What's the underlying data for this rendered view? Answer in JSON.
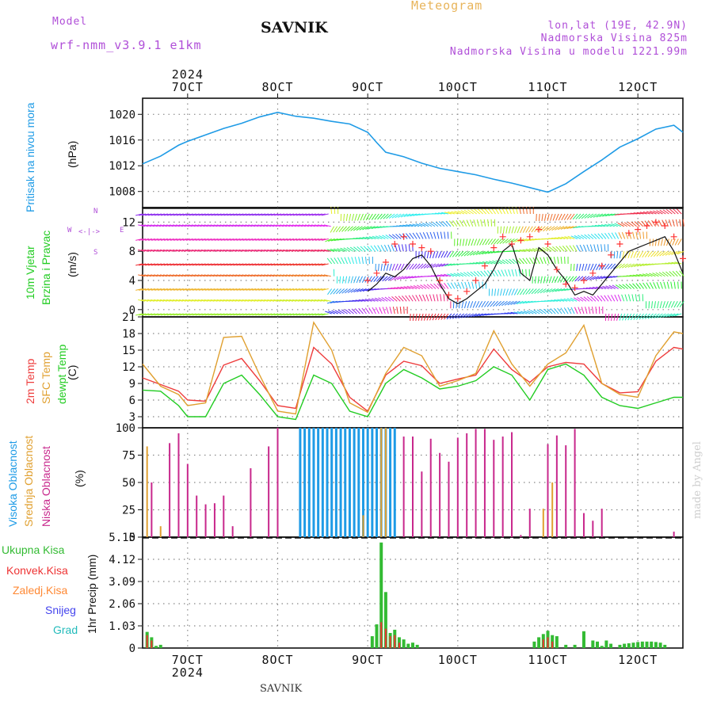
{
  "header": {
    "model_label": "Model",
    "model_name": "wrf-nmm_v3.9.1 e1km",
    "station": "SAVNIK",
    "product": "Meteogram",
    "coords": "lon,lat (19E, 42.9N)",
    "elevation": "Nadmorska Visina 825m",
    "model_elevation": "Nadmorska Visina u modelu 1221.99m"
  },
  "footer": {
    "station": "SAVNIK",
    "watermark": "made by Angel"
  },
  "colors": {
    "pressure": "#1f9be6",
    "wind_speed": "#111111",
    "wind_gust": "#ff3333",
    "temp2m": "#ee3b3b",
    "sfc": "#e0a030",
    "dewpt": "#22cc22",
    "high_cloud": "#1e9be6",
    "mid_cloud": "#e0a030",
    "low_cloud": "#c8288c",
    "total_rain": "#33bb33",
    "conv_rain": "#ee3333",
    "freezing": "#ff8833",
    "snow": "#4444ee",
    "graupel": "#22bbbb",
    "grid": "#888888"
  },
  "chart_data": [
    {
      "type": "line",
      "panel": "pressure",
      "ylabel_title": "Pritisak na nivou mora",
      "ylabel_unit": "(hPa)",
      "yticks": [
        "1008",
        "1012",
        "1016",
        "1020"
      ],
      "ylim": [
        1005.5,
        1022.5
      ],
      "x_days": [
        6.5,
        6.7,
        6.9,
        7.0,
        7.2,
        7.4,
        7.6,
        7.8,
        8.0,
        8.2,
        8.4,
        8.6,
        8.8,
        9.0,
        9.1,
        9.2,
        9.4,
        9.6,
        9.8,
        10.0,
        10.2,
        10.4,
        10.6,
        10.8,
        11.0,
        11.2,
        11.4,
        11.6,
        11.8,
        12.0,
        12.2,
        12.4,
        12.5
      ],
      "values": [
        1012.3,
        1013.5,
        1015.2,
        1015.8,
        1016.8,
        1017.8,
        1018.6,
        1019.6,
        1020.3,
        1019.7,
        1019.4,
        1018.9,
        1018.5,
        1017.2,
        1015.6,
        1014.1,
        1013.4,
        1012.4,
        1011.6,
        1011.1,
        1010.6,
        1009.9,
        1009.3,
        1008.6,
        1007.9,
        1009.2,
        1011.1,
        1012.9,
        1014.9,
        1016.2,
        1017.7,
        1018.3,
        1017.2
      ]
    },
    {
      "type": "line",
      "panel": "wind",
      "ylabel_title": "10m Vjetar",
      "ylabel_sub": "Brzina i Pravac",
      "ylabel_unit": "(m/s)",
      "compass_labels": [
        "N",
        "W",
        "E",
        "S"
      ],
      "yticks": [
        "0",
        "4",
        "8",
        "12"
      ],
      "ylim": [
        -1,
        14
      ],
      "x_days": [
        9.0,
        9.1,
        9.2,
        9.3,
        9.4,
        9.5,
        9.6,
        9.7,
        9.8,
        9.9,
        10.0,
        10.1,
        10.2,
        10.3,
        10.4,
        10.5,
        10.6,
        10.7,
        10.8,
        10.9,
        11.0,
        11.1,
        11.2,
        11.3,
        11.4,
        11.5,
        11.6,
        11.7,
        11.8,
        11.9,
        12.0,
        12.1,
        12.2,
        12.3,
        12.4,
        12.5
      ],
      "series": [
        {
          "values": [
            2.5,
            3.5,
            5.0,
            4.5,
            5.5,
            7.0,
            7.5,
            6.0,
            3.5,
            1.5,
            0.8,
            1.5,
            2.5,
            3.5,
            5.5,
            8.0,
            9.0,
            5.0,
            4.0,
            8.5,
            7.5,
            5.5,
            4.0,
            2.0,
            2.5,
            2.0,
            3.5,
            5.0,
            6.5,
            8.0,
            8.5,
            9.0,
            9.5,
            10.0,
            8.0,
            5.0
          ]
        },
        {
          "values": [
            4.0,
            5.0,
            6.5,
            9.0,
            10.0,
            9.0,
            8.5,
            8.0,
            4.0,
            2.0,
            1.5,
            2.5,
            4.0,
            6.0,
            8.5,
            10.0,
            9.0,
            9.5,
            10.0,
            11.0,
            9.0,
            5.5,
            3.5,
            3.0,
            4.0,
            5.0,
            6.0,
            7.5,
            9.0,
            10.5,
            11.0,
            11.5,
            12.0,
            11.5,
            10.0,
            7.0
          ]
        }
      ]
    },
    {
      "type": "line",
      "panel": "temperature",
      "ylabel_lines": [
        "2m Temp",
        "SFC Temp",
        "dewpt Temp"
      ],
      "ylabel_unit": "(C)",
      "yticks": [
        "3",
        "6",
        "9",
        "12",
        "15",
        "18",
        "21"
      ],
      "ylim": [
        1,
        21
      ],
      "x_days": [
        6.5,
        6.7,
        6.9,
        7.0,
        7.2,
        7.4,
        7.6,
        7.8,
        8.0,
        8.2,
        8.4,
        8.6,
        8.8,
        9.0,
        9.2,
        9.4,
        9.6,
        9.8,
        10.0,
        10.2,
        10.4,
        10.6,
        10.8,
        11.0,
        11.2,
        11.4,
        11.6,
        11.8,
        12.0,
        12.2,
        12.4,
        12.5
      ],
      "series": [
        {
          "name": "2m Temp",
          "values": [
            10.0,
            8.8,
            7.6,
            6.0,
            5.8,
            12.3,
            13.5,
            9.5,
            5.0,
            4.5,
            15.5,
            12.5,
            6.5,
            4.0,
            10.5,
            13.0,
            12.2,
            9.0,
            9.8,
            10.5,
            15.2,
            11.5,
            9.2,
            12.0,
            12.8,
            12.5,
            9.0,
            7.3,
            7.5,
            13.0,
            15.5,
            15.2
          ]
        },
        {
          "name": "SFC Temp",
          "values": [
            12.5,
            8.5,
            7.0,
            5.0,
            5.5,
            17.3,
            17.5,
            10.5,
            4.0,
            3.5,
            20.0,
            15.0,
            5.5,
            3.8,
            10.8,
            15.5,
            14.0,
            8.5,
            9.5,
            10.8,
            18.5,
            12.5,
            8.5,
            12.5,
            14.5,
            19.5,
            9.0,
            7.0,
            6.5,
            14.0,
            18.3,
            18.0
          ]
        },
        {
          "name": "dewpt Temp",
          "values": [
            7.8,
            7.6,
            5.0,
            3.0,
            3.0,
            9.0,
            10.5,
            7.0,
            3.0,
            2.5,
            10.5,
            9.0,
            4.0,
            3.0,
            9.0,
            11.5,
            10.0,
            8.0,
            8.5,
            9.5,
            12.0,
            10.5,
            6.0,
            11.5,
            12.5,
            10.5,
            6.5,
            5.0,
            4.5,
            5.5,
            6.5,
            6.5
          ]
        }
      ]
    },
    {
      "type": "bar",
      "panel": "clouds",
      "ylabel_lines": [
        "Visoka Oblacnost",
        "Srednja Oblacnost",
        "Niska Oblacnost"
      ],
      "ylabel_unit": "(%)",
      "yticks": [
        "0",
        "25",
        "50",
        "75",
        "100"
      ],
      "ylim": [
        0,
        100
      ],
      "series": [
        {
          "name": "Visoka Oblacnost",
          "x": [
            8.25,
            8.3,
            8.35,
            8.4,
            8.45,
            8.5,
            8.55,
            8.6,
            8.65,
            8.7,
            8.75,
            8.8,
            8.85,
            8.9,
            8.95,
            9.0,
            9.05,
            9.1,
            9.15,
            9.2,
            9.25,
            9.3
          ],
          "values": [
            100,
            100,
            100,
            100,
            100,
            100,
            100,
            100,
            100,
            100,
            100,
            100,
            100,
            100,
            100,
            100,
            100,
            100,
            100,
            100,
            100,
            100
          ]
        },
        {
          "name": "Srednja Oblacnost",
          "x": [
            6.55,
            6.7,
            8.95,
            9.15,
            9.2,
            10.95,
            11.0,
            11.05
          ],
          "values": [
            83,
            10,
            20,
            100,
            100,
            26,
            55,
            50
          ]
        },
        {
          "name": "Niska Oblacnost",
          "x": [
            6.6,
            6.8,
            6.9,
            7.0,
            7.1,
            7.2,
            7.3,
            7.4,
            7.5,
            7.7,
            7.9,
            8.0,
            9.4,
            9.5,
            9.6,
            9.7,
            9.8,
            9.9,
            10.0,
            10.1,
            10.2,
            10.3,
            10.4,
            10.5,
            10.6,
            10.7,
            10.8,
            11.0,
            11.1,
            11.2,
            11.3,
            11.4,
            11.5,
            11.6,
            12.4
          ],
          "values": [
            50,
            86,
            95,
            67,
            38,
            30,
            31,
            38,
            10,
            63,
            83,
            100,
            92,
            92,
            60,
            90,
            77,
            69,
            91,
            95,
            99,
            99,
            89,
            92,
            96,
            2,
            26,
            85,
            93,
            84,
            99,
            22,
            15,
            26,
            5
          ]
        }
      ]
    },
    {
      "type": "bar",
      "panel": "precipitation",
      "legend": [
        "Ukupna Kisa",
        "Konvek.Kisa",
        "Zaledj.Kisa",
        "Snijeg",
        "Grad"
      ],
      "ylabel_unit": "1hr Precip (mm)",
      "yticks": [
        "0",
        "1.03",
        "2.06",
        "3.09",
        "4.12",
        "5.15"
      ],
      "ylim": [
        0,
        5.15
      ],
      "series": [
        {
          "name": "Ukupna Kisa",
          "x": [
            6.55,
            6.6,
            6.65,
            6.7,
            9.05,
            9.1,
            9.15,
            9.2,
            9.25,
            9.3,
            9.35,
            9.4,
            9.45,
            9.5,
            9.55,
            10.85,
            10.9,
            10.95,
            11.0,
            11.05,
            11.1,
            11.2,
            11.3,
            11.4,
            11.5,
            11.55,
            11.6,
            11.65,
            11.7,
            11.8,
            11.85,
            11.9,
            11.95,
            12.0,
            12.05,
            12.1,
            12.15,
            12.2,
            12.25,
            12.3
          ],
          "values": [
            0.75,
            0.5,
            0.1,
            0.15,
            0.55,
            1.1,
            4.9,
            2.6,
            0.7,
            0.85,
            0.5,
            0.4,
            0.2,
            0.25,
            0.15,
            0.3,
            0.5,
            0.65,
            0.8,
            0.6,
            0.55,
            0.15,
            0.15,
            0.78,
            0.35,
            0.3,
            0.1,
            0.35,
            0.2,
            0.15,
            0.2,
            0.22,
            0.25,
            0.28,
            0.3,
            0.3,
            0.3,
            0.28,
            0.25,
            0.15
          ]
        },
        {
          "name": "Konvek.Kisa",
          "x": [
            6.55,
            6.6,
            9.15,
            9.2,
            9.25,
            9.3,
            9.35,
            10.95,
            11.0,
            11.05
          ],
          "values": [
            0.6,
            0.35,
            1.2,
            0.9,
            0.55,
            0.6,
            0.25,
            0.4,
            0.5,
            0.3
          ]
        }
      ]
    }
  ],
  "time_axis": {
    "top_labels": [
      "7OCT",
      "8OCT",
      "9OCT",
      "10OCT",
      "11OCT",
      "12OCT"
    ],
    "bottom_labels": [
      "7OCT",
      "8OCT",
      "9OCT",
      "10OCT",
      "11OCT",
      "12OCT"
    ],
    "year": "2024",
    "x_range_days": [
      6.5,
      12.5
    ]
  }
}
